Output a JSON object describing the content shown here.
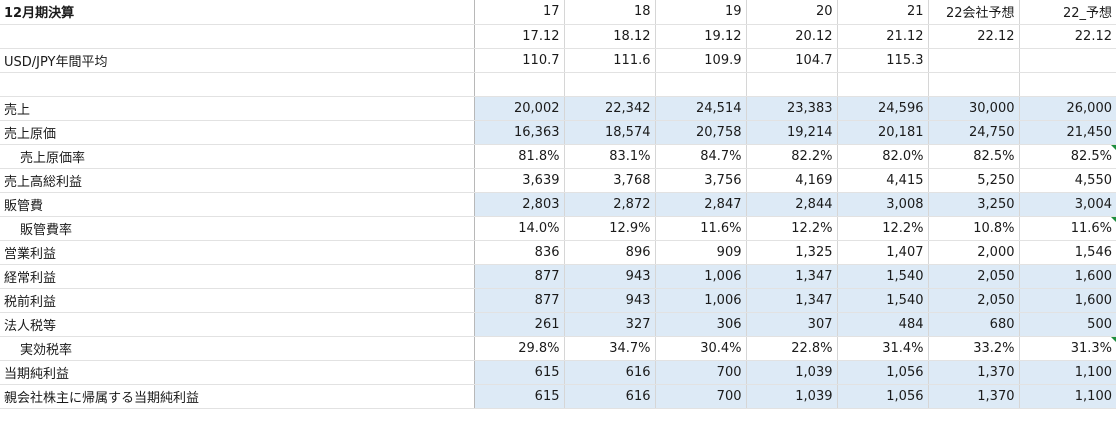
{
  "header": {
    "title": "12月期決算",
    "years": [
      "17",
      "18",
      "19",
      "20",
      "21",
      "22会社予想",
      "22_予想"
    ],
    "periods": [
      "17.12",
      "18.12",
      "19.12",
      "20.12",
      "21.12",
      "22.12",
      "22.12"
    ]
  },
  "fx": {
    "label": "USD/JPY年間平均",
    "values": [
      "110.7",
      "111.6",
      "109.9",
      "104.7",
      "115.3",
      "",
      ""
    ]
  },
  "rows": [
    {
      "label": "売上",
      "values": [
        "20,002",
        "22,342",
        "24,514",
        "23,383",
        "24,596",
        "30,000",
        "26,000"
      ]
    },
    {
      "label": "売上原価",
      "values": [
        "16,363",
        "18,574",
        "20,758",
        "19,214",
        "20,181",
        "24,750",
        "21,450"
      ]
    },
    {
      "label": "売上原価率",
      "values": [
        "81.8%",
        "83.1%",
        "84.7%",
        "82.2%",
        "82.0%",
        "82.5%",
        "82.5%"
      ]
    },
    {
      "label": "売上高総利益",
      "values": [
        "3,639",
        "3,768",
        "3,756",
        "4,169",
        "4,415",
        "5,250",
        "4,550"
      ]
    },
    {
      "label": "販管費",
      "values": [
        "2,803",
        "2,872",
        "2,847",
        "2,844",
        "3,008",
        "3,250",
        "3,004"
      ]
    },
    {
      "label": "販管費率",
      "values": [
        "14.0%",
        "12.9%",
        "11.6%",
        "12.2%",
        "12.2%",
        "10.8%",
        "11.6%"
      ]
    },
    {
      "label": "営業利益",
      "values": [
        "836",
        "896",
        "909",
        "1,325",
        "1,407",
        "2,000",
        "1,546"
      ]
    },
    {
      "label": "経常利益",
      "values": [
        "877",
        "943",
        "1,006",
        "1,347",
        "1,540",
        "2,050",
        "1,600"
      ]
    },
    {
      "label": "税前利益",
      "values": [
        "877",
        "943",
        "1,006",
        "1,347",
        "1,540",
        "2,050",
        "1,600"
      ]
    },
    {
      "label": "法人税等",
      "values": [
        "261",
        "327",
        "306",
        "307",
        "484",
        "680",
        "500"
      ]
    },
    {
      "label": "実効税率",
      "values": [
        "29.8%",
        "34.7%",
        "30.4%",
        "22.8%",
        "31.4%",
        "33.2%",
        "31.3%"
      ]
    },
    {
      "label": "当期純利益",
      "values": [
        "615",
        "616",
        "700",
        "1,039",
        "1,056",
        "1,370",
        "1,100"
      ]
    },
    {
      "label": "親会社株主に帰属する当期純利益",
      "values": [
        "615",
        "616",
        "700",
        "1,039",
        "1,056",
        "1,370",
        "1,100"
      ]
    }
  ],
  "colors": {
    "highlight": "#ddeaf6",
    "gridline": "#e2e2e2",
    "comment_marker": "#1e8e3e"
  }
}
